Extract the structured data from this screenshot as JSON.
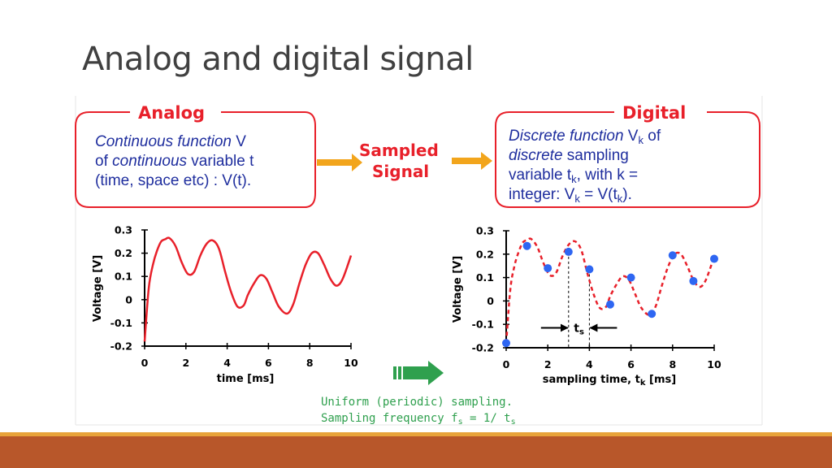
{
  "slide": {
    "title": "Analog and digital signal"
  },
  "colors": {
    "red": "#E8202A",
    "blue": "#2A3AB8",
    "orange": "#F2A51C",
    "green": "#2FA04E",
    "dot": "#2E66F2"
  },
  "figure": {
    "analog_box": {
      "label": "Analog",
      "line1_em": "Continuous function",
      "line1_rest": " V",
      "line2_pre": "of ",
      "line2_em": "continuous",
      "line2_rest": " variable t",
      "line3": "(time, space etc) : V(t)."
    },
    "digital_box": {
      "label": "Digital",
      "line1_em": "Discrete function",
      "line1_rest": " V",
      "line1_sub": "k",
      "line1_end": " of",
      "line2_em": "discrete",
      "line2_rest": " sampling",
      "line3_pre": "variable t",
      "line3_sub": "k",
      "line3_rest": ", with k =",
      "line4_pre": "integer: V",
      "line4_sub": "k",
      "line4_mid": " = V(t",
      "line4_sub2": "k",
      "line4_end": ")."
    },
    "sampled_signal": {
      "line1": "Sampled",
      "line2": "Signal"
    },
    "caption": {
      "line1": "Uniform (periodic) sampling.",
      "line2_pre": "Sampling frequency f",
      "line2_sub": "s",
      "line2_mid": " = 1/ t",
      "line2_sub2": "s"
    },
    "ts_label": {
      "base": "t",
      "sub": "s"
    }
  },
  "chart_data": [
    {
      "type": "line",
      "title": "",
      "xlabel": "time [ms]",
      "ylabel": "Voltage [V]",
      "xlim": [
        0,
        10
      ],
      "ylim": [
        -0.2,
        0.3
      ],
      "xticks": [
        "0",
        "2",
        "4",
        "6",
        "8",
        "10"
      ],
      "yticks": [
        "0.3",
        "0.2",
        "0.1",
        "0",
        "-0.1",
        "-0.2"
      ],
      "x": [
        0,
        0.2,
        0.4,
        0.6,
        0.8,
        1.0,
        1.2,
        1.5,
        1.8,
        2.1,
        2.4,
        2.7,
        3.0,
        3.3,
        3.6,
        3.9,
        4.2,
        4.5,
        4.8,
        5.0,
        5.3,
        5.6,
        5.9,
        6.2,
        6.5,
        6.9,
        7.2,
        7.5,
        7.8,
        8.1,
        8.4,
        8.7,
        9.0,
        9.3,
        9.6,
        10.0
      ],
      "y": [
        -0.18,
        0.05,
        0.15,
        0.21,
        0.25,
        0.26,
        0.265,
        0.23,
        0.16,
        0.11,
        0.12,
        0.19,
        0.24,
        0.255,
        0.22,
        0.12,
        0.03,
        -0.03,
        -0.025,
        0.02,
        0.07,
        0.105,
        0.09,
        0.03,
        -0.03,
        -0.06,
        -0.02,
        0.07,
        0.15,
        0.2,
        0.2,
        0.15,
        0.09,
        0.06,
        0.09,
        0.19
      ]
    },
    {
      "type": "scatter",
      "title": "",
      "xlabel": "sampling time, t",
      "xlabel_sub": "k",
      "xlabel_end": " [ms]",
      "ylabel": "Voltage [V]",
      "xlim": [
        0,
        10
      ],
      "ylim": [
        -0.2,
        0.3
      ],
      "xticks": [
        "0",
        "2",
        "4",
        "6",
        "8",
        "10"
      ],
      "yticks": [
        "0.3",
        "0.2",
        "0.1",
        "0",
        "-0.1",
        "-0.2"
      ],
      "points_x": [
        0,
        1,
        2,
        3,
        4,
        5,
        6,
        7,
        8,
        9,
        10
      ],
      "points_y": [
        -0.18,
        0.235,
        0.14,
        0.21,
        0.135,
        -0.015,
        0.1,
        -0.055,
        0.195,
        0.085,
        0.18
      ],
      "dashed_x": [
        0,
        0.2,
        0.4,
        0.6,
        0.8,
        1.0,
        1.2,
        1.5,
        1.8,
        2.1,
        2.4,
        2.7,
        3.0,
        3.3,
        3.6,
        3.9,
        4.2,
        4.5,
        4.8,
        5.0,
        5.3,
        5.6,
        5.9,
        6.2,
        6.5,
        6.9,
        7.2,
        7.5,
        7.8,
        8.1,
        8.4,
        8.7,
        9.0,
        9.3,
        9.6,
        10.0
      ],
      "dashed_y": [
        -0.18,
        0.05,
        0.15,
        0.21,
        0.25,
        0.26,
        0.265,
        0.23,
        0.16,
        0.11,
        0.12,
        0.19,
        0.24,
        0.255,
        0.22,
        0.12,
        0.03,
        -0.03,
        -0.025,
        0.02,
        0.07,
        0.105,
        0.09,
        0.03,
        -0.03,
        -0.06,
        -0.02,
        0.07,
        0.15,
        0.2,
        0.2,
        0.15,
        0.09,
        0.06,
        0.09,
        0.19
      ],
      "ts_markers_x": [
        3,
        4
      ]
    }
  ]
}
